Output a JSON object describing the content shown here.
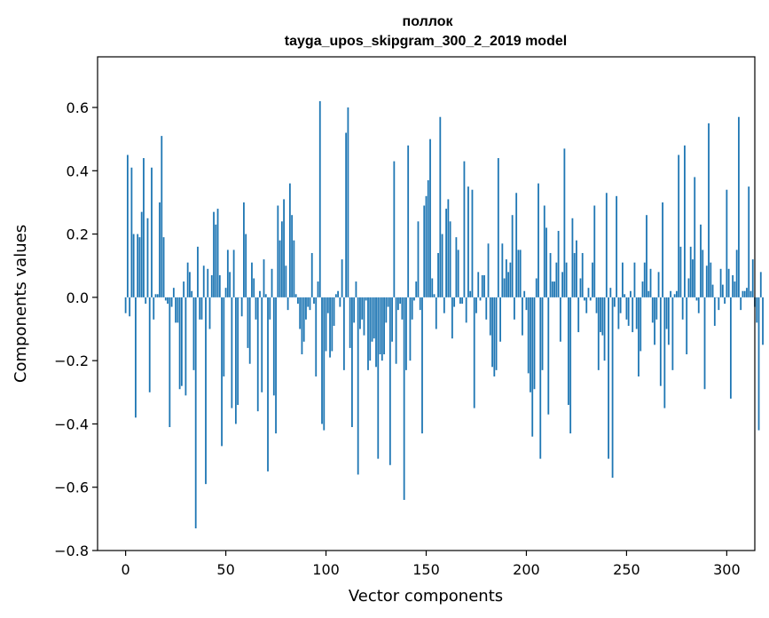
{
  "chart_data": {
    "type": "bar",
    "title_line1": "поллок",
    "title_line2": "tayga_upos_skipgram_300_2_2019 model",
    "xlabel": "Vector components",
    "ylabel": "Components values",
    "xlim": [
      -14,
      314
    ],
    "ylim": [
      -0.8,
      0.76
    ],
    "xticks": [
      0,
      50,
      100,
      150,
      200,
      250,
      300
    ],
    "xtick_labels": [
      "0",
      "50",
      "100",
      "150",
      "200",
      "250",
      "300"
    ],
    "yticks": [
      -0.8,
      -0.6,
      -0.4,
      -0.2,
      0.0,
      0.2,
      0.4,
      0.6
    ],
    "ytick_labels": [
      "−0.8",
      "−0.6",
      "−0.4",
      "−0.2",
      "0.0",
      "0.2",
      "0.4",
      "0.6"
    ],
    "bar_color": "#1f77b4",
    "grid": false,
    "values": [
      -0.05,
      0.45,
      -0.06,
      0.41,
      0.2,
      -0.38,
      0.2,
      0.19,
      0.27,
      0.44,
      -0.02,
      0.25,
      -0.3,
      0.41,
      -0.07,
      0.01,
      0.01,
      0.3,
      0.51,
      0.19,
      -0.01,
      -0.02,
      -0.41,
      -0.03,
      0.03,
      -0.08,
      -0.08,
      -0.29,
      -0.28,
      0.05,
      -0.31,
      0.11,
      0.08,
      0.02,
      -0.23,
      -0.73,
      0.16,
      -0.07,
      -0.07,
      0.1,
      -0.59,
      0.09,
      -0.1,
      0.07,
      0.27,
      0.23,
      0.28,
      0.07,
      -0.47,
      -0.25,
      0.03,
      0.15,
      0.08,
      -0.35,
      0.15,
      -0.4,
      -0.34,
      0.0,
      -0.06,
      0.3,
      0.2,
      -0.16,
      -0.21,
      0.11,
      0.06,
      -0.07,
      -0.36,
      0.02,
      -0.3,
      0.12,
      0.01,
      -0.55,
      -0.07,
      0.09,
      -0.31,
      -0.43,
      0.29,
      0.18,
      0.24,
      0.31,
      0.1,
      -0.04,
      0.36,
      0.26,
      0.18,
      0.01,
      -0.02,
      -0.1,
      -0.18,
      -0.14,
      -0.07,
      -0.03,
      -0.04,
      0.14,
      -0.02,
      -0.25,
      0.05,
      0.62,
      -0.4,
      -0.42,
      -0.17,
      -0.05,
      -0.19,
      -0.17,
      -0.09,
      0.01,
      0.02,
      -0.03,
      0.12,
      -0.23,
      0.52,
      0.6,
      -0.16,
      -0.41,
      -0.08,
      0.05,
      -0.56,
      -0.1,
      -0.07,
      -0.12,
      -0.01,
      -0.23,
      -0.2,
      -0.14,
      -0.13,
      -0.22,
      -0.51,
      -0.18,
      -0.2,
      -0.18,
      -0.08,
      -0.03,
      -0.53,
      -0.14,
      0.43,
      -0.21,
      -0.04,
      -0.02,
      -0.07,
      -0.64,
      -0.23,
      0.48,
      -0.2,
      -0.07,
      -0.01,
      0.05,
      0.24,
      -0.04,
      -0.43,
      0.29,
      0.32,
      0.37,
      0.5,
      0.06,
      0.01,
      -0.1,
      0.14,
      0.57,
      0.2,
      -0.05,
      0.28,
      0.31,
      0.24,
      -0.13,
      -0.03,
      0.19,
      0.15,
      -0.02,
      -0.02,
      0.43,
      -0.08,
      0.35,
      0.02,
      0.34,
      -0.35,
      -0.05,
      0.08,
      -0.01,
      0.07,
      0.07,
      -0.07,
      0.17,
      -0.12,
      -0.22,
      -0.25,
      -0.23,
      0.44,
      -0.14,
      0.17,
      0.06,
      0.12,
      0.08,
      0.11,
      0.26,
      -0.07,
      0.33,
      0.15,
      0.15,
      -0.12,
      0.02,
      -0.04,
      -0.24,
      -0.3,
      -0.44,
      -0.29,
      0.06,
      0.36,
      -0.51,
      -0.23,
      0.29,
      0.22,
      -0.37,
      0.14,
      0.05,
      0.05,
      0.11,
      0.21,
      -0.14,
      0.08,
      0.47,
      0.11,
      -0.34,
      -0.43,
      0.25,
      0.14,
      0.18,
      -0.11,
      0.06,
      0.14,
      -0.01,
      -0.05,
      0.03,
      -0.01,
      0.11,
      0.29,
      -0.05,
      -0.23,
      -0.11,
      -0.12,
      -0.2,
      0.33,
      -0.51,
      0.03,
      -0.57,
      -0.03,
      0.32,
      -0.1,
      -0.05,
      0.11,
      0.01,
      -0.07,
      -0.09,
      0.02,
      -0.11,
      0.11,
      -0.1,
      -0.25,
      -0.17,
      0.05,
      0.11,
      0.26,
      0.02,
      0.09,
      -0.08,
      -0.15,
      -0.07,
      0.08,
      -0.28,
      0.3,
      -0.35,
      -0.1,
      -0.15,
      0.02,
      -0.23,
      0.01,
      0.02,
      0.45,
      0.16,
      -0.07,
      0.48,
      -0.18,
      0.06,
      0.16,
      0.12,
      0.38,
      -0.01,
      -0.05,
      0.23,
      0.15,
      -0.29,
      0.1,
      0.55,
      0.11,
      0.04,
      -0.09,
      0.0,
      -0.04,
      0.09,
      0.04,
      -0.02,
      0.34,
      0.09,
      -0.32,
      0.07,
      0.05,
      0.15,
      0.57,
      -0.04,
      0.02,
      0.02,
      0.03,
      0.35,
      0.02,
      0.12,
      -0.03,
      -0.08,
      -0.42,
      0.08,
      -0.15
    ]
  }
}
